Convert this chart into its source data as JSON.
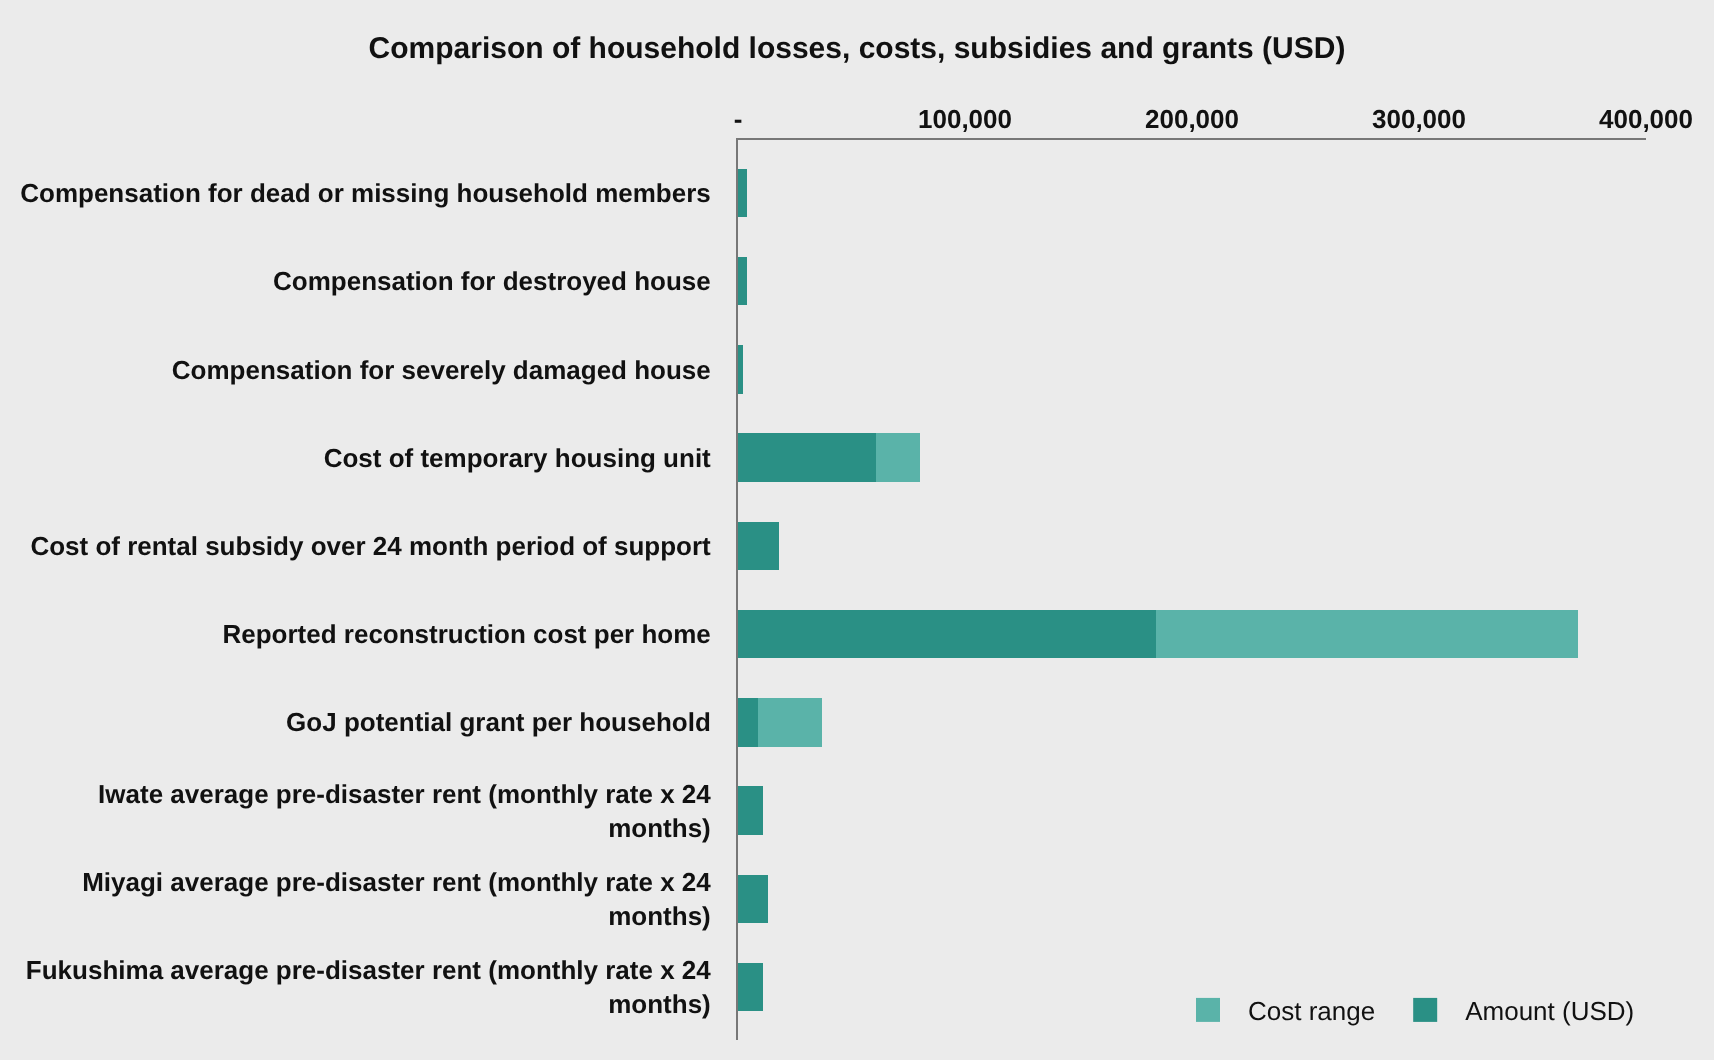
{
  "chart_data": {
    "type": "bar",
    "orientation": "horizontal",
    "stacked": true,
    "title": "Comparison of household losses, costs, subsidies and grants (USD)",
    "categories": [
      "Compensation for dead or missing household members",
      "Compensation for destroyed house",
      "Compensation for severely damaged house",
      "Cost of temporary housing unit",
      "Cost of rental subsidy over 24 month period of support",
      "Reported reconstruction cost per home",
      "GoJ potential grant per household",
      "Iwate average pre-disaster rent (monthly rate x 24 months)",
      "Miyagi average pre-disaster rent (monthly rate x 24 months)",
      "Fukushima average pre-disaster rent (monthly rate x 24 months)"
    ],
    "series": [
      {
        "name": "Amount (USD)",
        "color": "#2a9085",
        "values": [
          4000,
          4000,
          2000,
          61000,
          18000,
          184000,
          9000,
          11000,
          13000,
          11000
        ]
      },
      {
        "name": "Cost range",
        "color": "#5ab3a9",
        "values": [
          null,
          null,
          null,
          19000,
          null,
          186000,
          28000,
          null,
          null,
          null
        ]
      }
    ],
    "xlim": [
      0,
      400000
    ],
    "xticks": [
      {
        "value": 0,
        "label": "-"
      },
      {
        "value": 100000,
        "label": "100,000"
      },
      {
        "value": 200000,
        "label": "200,000"
      },
      {
        "value": 300000,
        "label": "300,000"
      },
      {
        "value": 400000,
        "label": "400,000"
      }
    ],
    "grid": false,
    "legend": "bottom right"
  }
}
